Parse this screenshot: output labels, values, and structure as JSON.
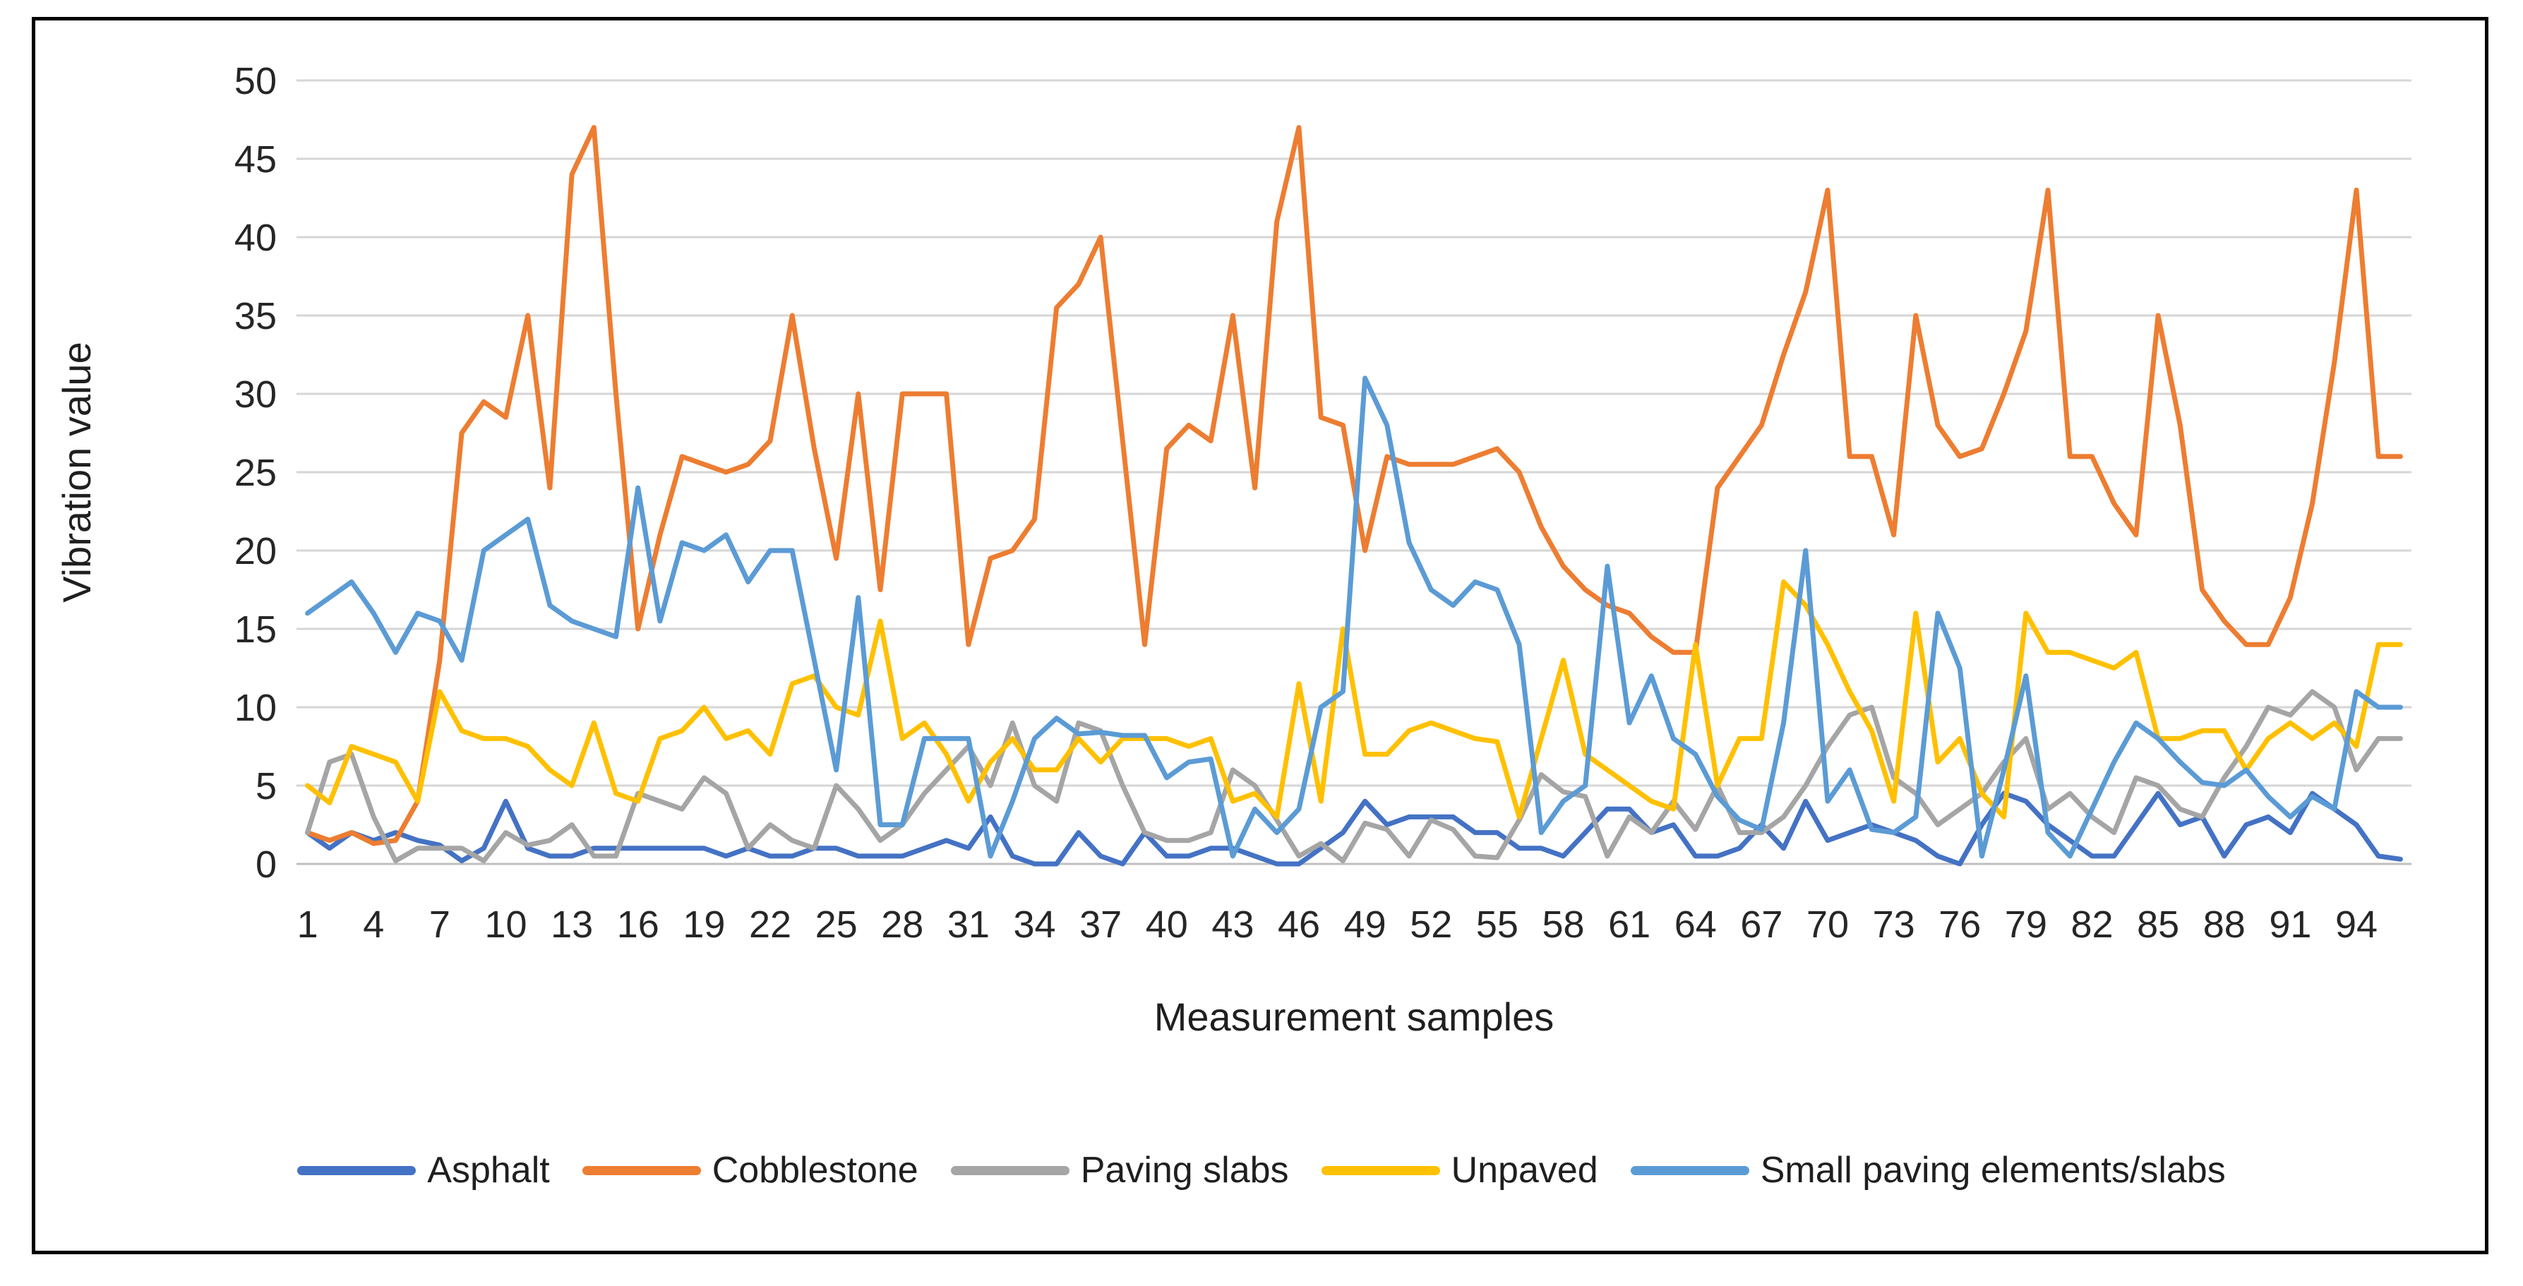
{
  "chart_data": {
    "type": "line",
    "title": "",
    "xlabel": "Measurement samples",
    "ylabel": "Vibration value",
    "n_samples": 96,
    "xtick_labels": [
      1,
      4,
      7,
      10,
      13,
      16,
      19,
      22,
      25,
      28,
      31,
      34,
      37,
      40,
      43,
      46,
      49,
      52,
      55,
      58,
      61,
      64,
      67,
      70,
      73,
      76,
      79,
      82,
      85,
      88,
      91,
      94
    ],
    "yticks": [
      0,
      5,
      10,
      15,
      20,
      25,
      30,
      35,
      40,
      45,
      50
    ],
    "ylim": [
      0,
      50
    ],
    "grid": "horizontal-only",
    "gridline_color": "#D6D6D6",
    "axisline_color": "#BFBFBF",
    "tick_color": "#262626",
    "legend_position": "bottom",
    "series": [
      {
        "name": "Asphalt",
        "color": "#4472C4",
        "values": [
          2,
          1,
          2,
          1.5,
          2,
          1.5,
          1.2,
          0.2,
          1,
          4,
          1,
          0.5,
          0.5,
          1,
          1,
          1,
          1,
          1,
          1,
          0.5,
          1,
          0.5,
          0.5,
          1,
          1,
          0.5,
          0.5,
          0.5,
          1,
          1.5,
          1,
          3,
          0.5,
          0,
          0,
          2,
          0.5,
          0,
          2,
          0.5,
          0.5,
          1,
          1,
          0.5,
          0,
          0,
          1,
          2,
          4,
          2.5,
          3,
          3,
          3,
          2,
          2,
          1,
          1,
          0.5,
          2,
          3.5,
          3.5,
          2,
          2.5,
          0.5,
          0.5,
          1,
          2.5,
          1,
          4,
          1.5,
          2,
          2.5,
          2,
          1.5,
          0.5,
          0,
          2.5,
          4.5,
          4,
          2.5,
          1.5,
          0.5,
          0.5,
          2.5,
          4.5,
          2.5,
          3,
          0.5,
          2.5,
          3,
          2,
          4.5,
          3.5,
          2.5,
          0.5,
          0.3
        ]
      },
      {
        "name": "Cobblestone",
        "color": "#ED7D31",
        "values": [
          2,
          1.5,
          2,
          1.3,
          1.5,
          4,
          13,
          27.5,
          29.5,
          28.5,
          35,
          24,
          44,
          47,
          30,
          15,
          21,
          26,
          25.5,
          25,
          25.5,
          27,
          35,
          26.5,
          19.5,
          30,
          17.5,
          30,
          30,
          30,
          14,
          19.5,
          20,
          22,
          35.5,
          37,
          40,
          27,
          14,
          26.5,
          28,
          27,
          35,
          24,
          41,
          47,
          28.5,
          28,
          20,
          26,
          25.5,
          25.5,
          25.5,
          26,
          26.5,
          25,
          21.5,
          19,
          17.5,
          16.5,
          16,
          14.5,
          13.5,
          13.5,
          24,
          26,
          28,
          32.5,
          36.5,
          43,
          26,
          26,
          21,
          35,
          28,
          26,
          26.5,
          30,
          34,
          43,
          26,
          26,
          23,
          21,
          35,
          28,
          17.5,
          15.5,
          14,
          14,
          17,
          23,
          32,
          43,
          26,
          26
        ]
      },
      {
        "name": "Paving slabs",
        "color": "#A5A5A5",
        "values": [
          2,
          6.5,
          7,
          3,
          0.2,
          1,
          1,
          1,
          0.2,
          2,
          1.2,
          1.5,
          2.5,
          0.5,
          0.5,
          4.5,
          4,
          3.5,
          5.5,
          4.5,
          1,
          2.5,
          1.5,
          1,
          5,
          3.5,
          1.5,
          2.5,
          4.5,
          6,
          7.5,
          5,
          9,
          5,
          4,
          9,
          8.5,
          5,
          2,
          1.5,
          1.5,
          2,
          6,
          5,
          2.8,
          0.5,
          1.3,
          0.2,
          2.6,
          2.2,
          0.5,
          2.8,
          2.2,
          0.5,
          0.4,
          2.8,
          5.7,
          4.6,
          4.3,
          0.5,
          3,
          2,
          4,
          2.2,
          5,
          2,
          2,
          3,
          5,
          7.5,
          9.5,
          10,
          5.5,
          4.5,
          2.5,
          3.5,
          4.5,
          6.5,
          8,
          3.5,
          4.5,
          3,
          2,
          5.5,
          5,
          3.5,
          3,
          5.5,
          7.5,
          10,
          9.5,
          11,
          10,
          6,
          8,
          8
        ]
      },
      {
        "name": "Unpaved",
        "color": "#FFC000",
        "values": [
          5,
          3.9,
          7.5,
          7,
          6.5,
          4,
          11,
          8.5,
          8,
          8,
          7.5,
          6,
          5,
          9,
          4.5,
          4,
          8,
          8.5,
          10,
          8,
          8.5,
          7,
          11.5,
          12,
          10,
          9.5,
          15.5,
          8,
          9,
          7,
          4,
          6.5,
          8,
          6,
          6,
          8,
          6.5,
          8,
          8,
          8,
          7.5,
          8,
          4,
          4.5,
          3,
          11.5,
          4,
          15,
          7,
          7,
          8.5,
          9,
          8.5,
          8,
          7.8,
          3,
          8,
          13,
          7,
          6,
          5,
          4,
          3.5,
          14,
          5,
          8,
          8,
          18,
          16.5,
          14,
          11,
          8.5,
          4,
          16,
          6.5,
          8,
          4.5,
          3,
          16,
          13.5,
          13.5,
          13,
          12.5,
          13.5,
          8,
          8,
          8.5,
          8.5,
          6,
          8,
          9,
          8,
          9,
          7.5,
          14,
          14
        ]
      },
      {
        "name": "Small paving elements/slabs",
        "color": "#5B9BD5",
        "values": [
          16,
          17,
          18,
          16,
          13.5,
          16,
          15.5,
          13,
          20,
          21,
          22,
          16.5,
          15.5,
          15,
          14.5,
          24,
          15.5,
          20.5,
          20,
          21,
          18,
          20,
          20,
          13,
          6,
          17,
          2.5,
          2.5,
          8,
          8,
          8,
          0.5,
          4,
          8,
          9.3,
          8.3,
          8.4,
          8.2,
          8.2,
          5.5,
          6.5,
          6.7,
          0.5,
          3.5,
          2,
          3.5,
          10,
          11,
          31,
          28,
          20.5,
          17.5,
          16.5,
          18,
          17.5,
          14,
          2,
          4,
          5,
          19,
          9,
          12,
          8,
          7,
          4.3,
          2.8,
          2.2,
          9,
          20,
          4,
          6,
          2.2,
          2,
          3,
          16,
          12.5,
          0.5,
          6,
          12,
          2,
          0.5,
          3.5,
          6.5,
          9,
          8,
          6.5,
          5.2,
          5,
          6,
          4.3,
          3,
          4.3,
          3.5,
          11,
          10,
          10
        ]
      }
    ]
  }
}
